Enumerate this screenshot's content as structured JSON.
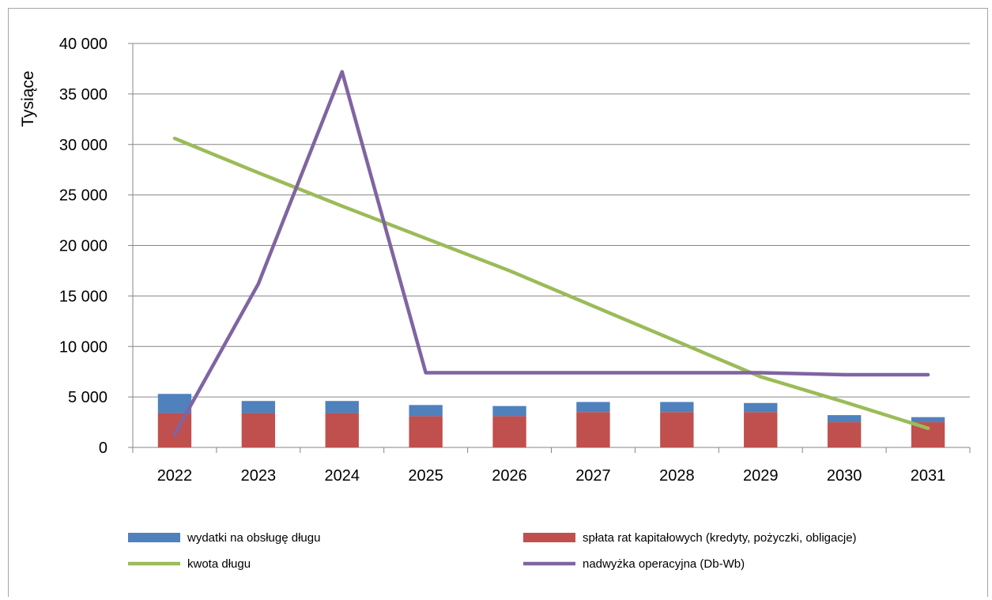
{
  "chart_data": {
    "type": "bar",
    "ylabel": "Tysiące",
    "ylim": [
      0,
      40000
    ],
    "yticks": [
      0,
      5000,
      10000,
      15000,
      20000,
      25000,
      30000,
      35000,
      40000
    ],
    "ytick_labels": [
      "0",
      "5 000",
      "10 000",
      "15 000",
      "20 000",
      "25 000",
      "30 000",
      "35 000",
      "40 000"
    ],
    "categories": [
      "2022",
      "2023",
      "2024",
      "2025",
      "2026",
      "2027",
      "2028",
      "2029",
      "2030",
      "2031"
    ],
    "grid": true,
    "legend_position": "bottom",
    "stacked_bars": [
      {
        "name": "spłata rat kapitałowych (kredyty, pożyczki, obligacje)",
        "color": "#c0504d",
        "values": [
          3400,
          3400,
          3400,
          3100,
          3100,
          3500,
          3500,
          3500,
          2500,
          2500
        ]
      },
      {
        "name": "wydatki na obsługę długu",
        "color": "#4f81bd",
        "values": [
          1900,
          1200,
          1200,
          1100,
          1000,
          1000,
          1000,
          900,
          700,
          500
        ]
      }
    ],
    "lines": [
      {
        "name": "kwota długu",
        "color": "#9bbb59",
        "values": [
          30600,
          27200,
          23900,
          20700,
          17500,
          14000,
          10500,
          7000,
          4500,
          1900
        ]
      },
      {
        "name": "nadwyżka operacyjna (Db-Wb)",
        "color": "#8064a2",
        "values": [
          1300,
          16200,
          37200,
          7400,
          7400,
          7400,
          7400,
          7400,
          7200,
          7200
        ]
      }
    ],
    "legend": [
      {
        "name": "wydatki na obsługę długu",
        "kind": "bar",
        "color": "#4f81bd"
      },
      {
        "name": "spłata rat kapitałowych (kredyty, pożyczki, obligacje)",
        "kind": "bar",
        "color": "#c0504d"
      },
      {
        "name": "kwota długu",
        "kind": "line",
        "color": "#9bbb59"
      },
      {
        "name": "nadwyżka operacyjna (Db-Wb)",
        "kind": "line",
        "color": "#8064a2"
      }
    ]
  }
}
